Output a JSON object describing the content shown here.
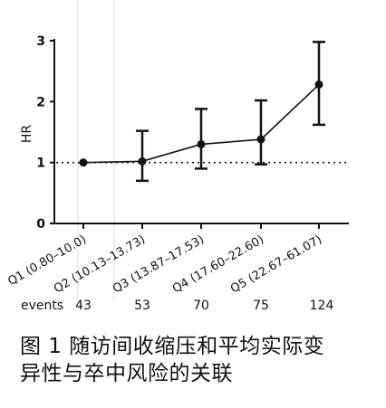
{
  "chart_data": {
    "type": "line",
    "ylabel": "HR",
    "xlabel": "",
    "ylim": [
      0,
      3
    ],
    "yticks": [
      "0",
      "1",
      "2",
      "3"
    ],
    "reference_line": 1,
    "categories": [
      "Q1 (0.80–10.0)",
      "Q2 (10.13–13.73)",
      "Q3 (13.87–17.53)",
      "Q4 (17.60–22.60)",
      "Q5 (22.67–61.07)"
    ],
    "series": [
      {
        "values": [
          1.0,
          1.02,
          1.3,
          1.38,
          2.28
        ],
        "lower": [
          1.0,
          0.7,
          0.9,
          0.97,
          1.62
        ],
        "upper": [
          1.0,
          1.52,
          1.88,
          2.02,
          2.98
        ]
      }
    ]
  },
  "events": {
    "label": "events",
    "counts": [
      "43",
      "53",
      "70",
      "75",
      "124"
    ]
  },
  "caption": {
    "line1": "图 1  随访间收缩压和平均实际变",
    "line2": "异性与卒中风险的关联"
  }
}
